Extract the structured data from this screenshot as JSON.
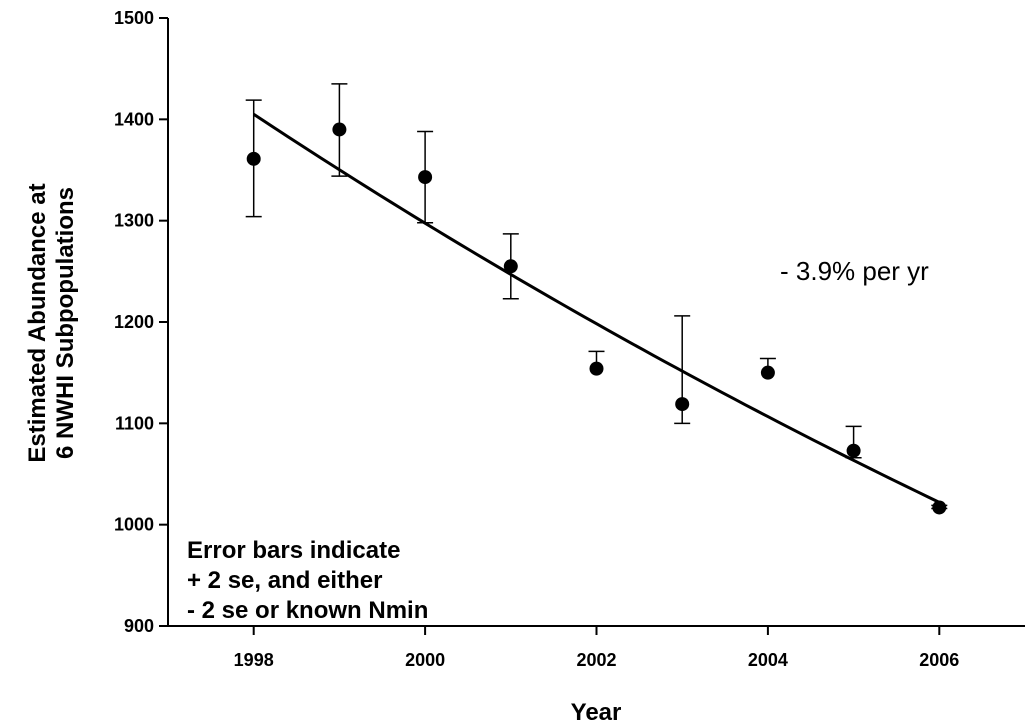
{
  "chart_data": {
    "type": "scatter",
    "xlabel": "Year",
    "ylabel_lines": [
      "Estimated Abundance at",
      "6 NWHI Subpopulations"
    ],
    "xlim": [
      1997,
      2007
    ],
    "ylim": [
      900,
      1500
    ],
    "x_ticks": [
      1998,
      2000,
      2002,
      2004,
      2006
    ],
    "y_ticks": [
      900,
      1000,
      1100,
      1200,
      1300,
      1400,
      1500
    ],
    "points": [
      {
        "x": 1998,
        "y": 1361,
        "upper": 1419,
        "lower": 1304
      },
      {
        "x": 1999,
        "y": 1390,
        "upper": 1435,
        "lower": 1344
      },
      {
        "x": 2000,
        "y": 1343,
        "upper": 1388,
        "lower": 1298
      },
      {
        "x": 2001,
        "y": 1255,
        "upper": 1287,
        "lower": 1223
      },
      {
        "x": 2002,
        "y": 1154,
        "upper": 1171,
        "lower": null
      },
      {
        "x": 2003,
        "y": 1119,
        "upper": 1206,
        "lower": 1100
      },
      {
        "x": 2004,
        "y": 1150,
        "upper": 1164,
        "lower": null
      },
      {
        "x": 2005,
        "y": 1073,
        "upper": 1097,
        "lower": 1066
      },
      {
        "x": 2006,
        "y": 1017,
        "upper": 1019,
        "lower": 1016
      }
    ],
    "trend": {
      "type": "exponential",
      "x_start": 1998,
      "y_start": 1405,
      "x_end": 2006,
      "y_end": 1022
    },
    "trend_label": "- 3.9% per yr",
    "annotation_lines": [
      "Error bars indicate",
      "+ 2 se, and either",
      "- 2 se or known Nmin"
    ],
    "grid": false
  }
}
